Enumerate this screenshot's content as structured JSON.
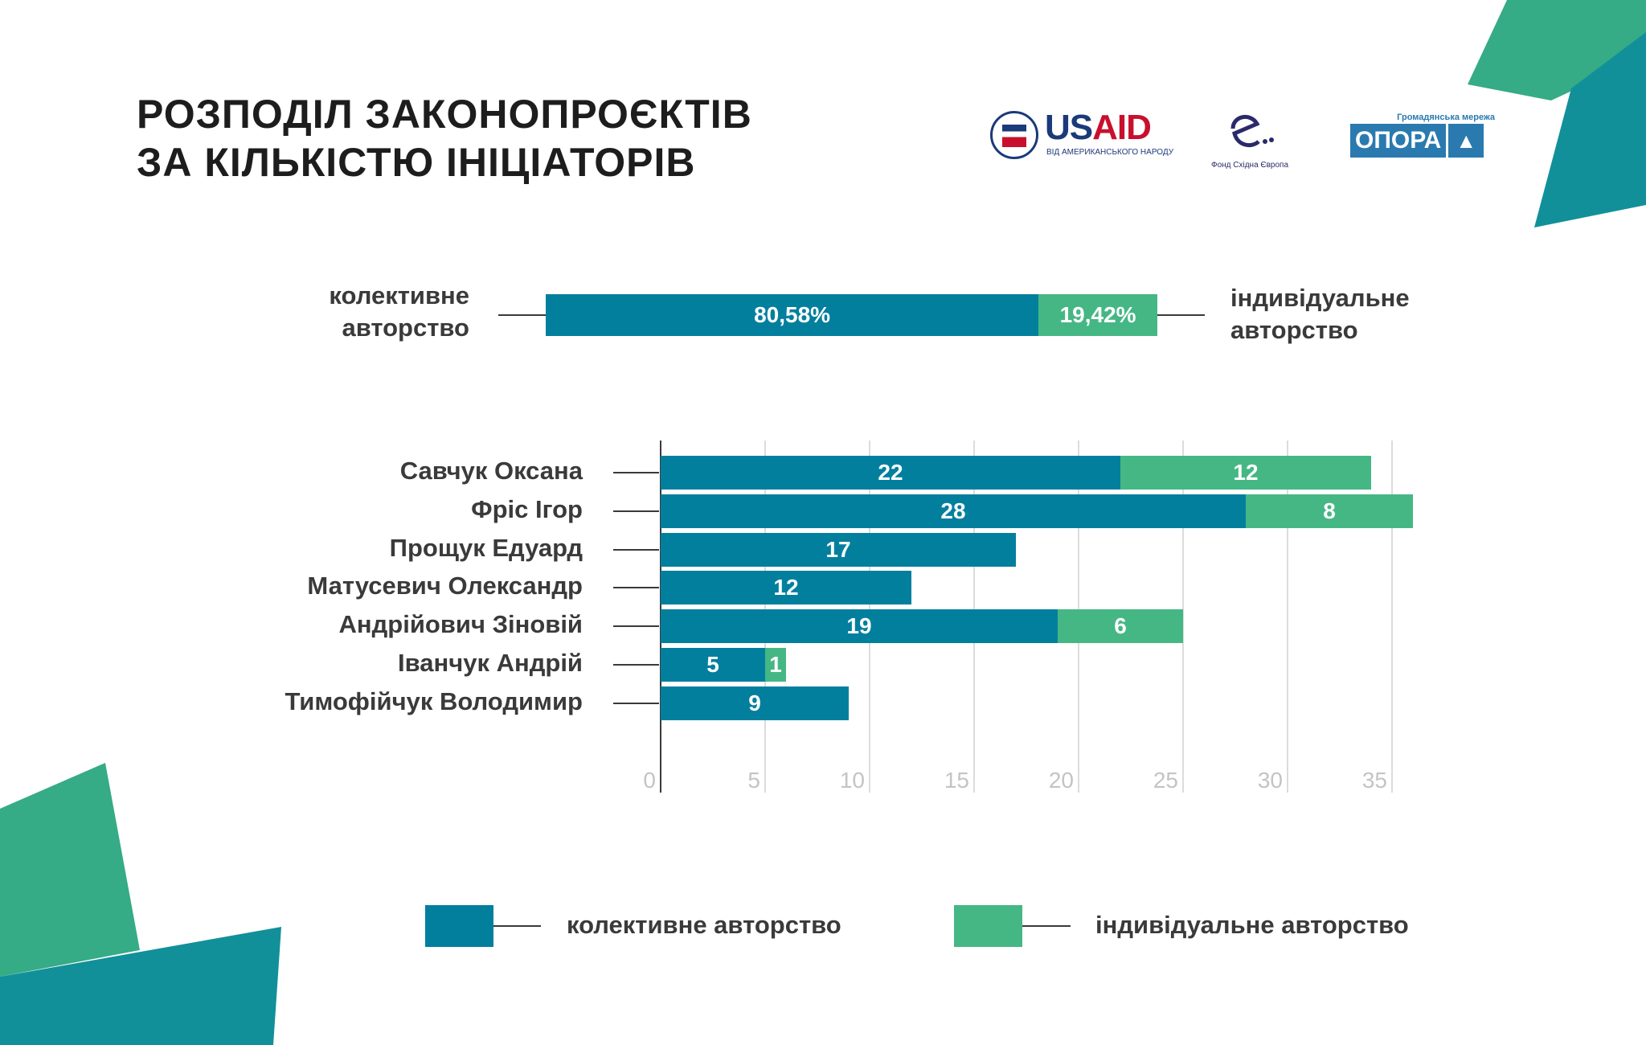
{
  "title": [
    "РОЗПОДІЛ ЗАКОНОПРОЄКТІВ",
    "ЗА КІЛЬКІСТЮ ІНІЦІАТОРІВ"
  ],
  "logos": {
    "usaid": {
      "name": "USAID",
      "sub": "ВІД АМЕРИКАНСЬКОГО НАРОДУ"
    },
    "fund": {
      "name": "Фонд Східна Європа"
    },
    "opora": {
      "top": "Громадянська мережа",
      "name": "ОПОРА"
    }
  },
  "colors": {
    "collective": "#037f9e",
    "individual": "#45b784",
    "deco_green": "#35ab86",
    "deco_teal": "#12909a"
  },
  "chart_data": [
    {
      "type": "bar",
      "orientation": "horizontal-stacked-100",
      "series": [
        {
          "name": "колективне авторство",
          "value": 80.58,
          "label": "80,58%"
        },
        {
          "name": "індивідуальне авторство",
          "value": 19.42,
          "label": "19,42%"
        }
      ],
      "left_label": [
        "колективне",
        "авторство"
      ],
      "right_label": [
        "індивідуальне",
        "авторство"
      ]
    },
    {
      "type": "bar",
      "orientation": "horizontal-stacked",
      "categories": [
        "Савчук Оксана",
        "Фріс Ігор",
        "Прощук Едуард",
        "Матусевич Олександр",
        "Андрійович Зіновій",
        "Іванчук Андрій",
        "Тимофійчук Володимир"
      ],
      "series": [
        {
          "name": "колективне авторство",
          "values": [
            22,
            28,
            17,
            12,
            19,
            5,
            9
          ]
        },
        {
          "name": "індивідуальне авторство",
          "values": [
            12,
            8,
            0,
            0,
            6,
            1,
            0
          ]
        }
      ],
      "xticks": [
        "0",
        "5",
        "10",
        "15",
        "20",
        "25",
        "30",
        "35"
      ],
      "xlim": [
        0,
        36
      ],
      "grid": true,
      "legend": "bottom"
    }
  ],
  "legend": [
    {
      "label": "колективне авторство"
    },
    {
      "label": "індивідуальне авторство"
    }
  ]
}
